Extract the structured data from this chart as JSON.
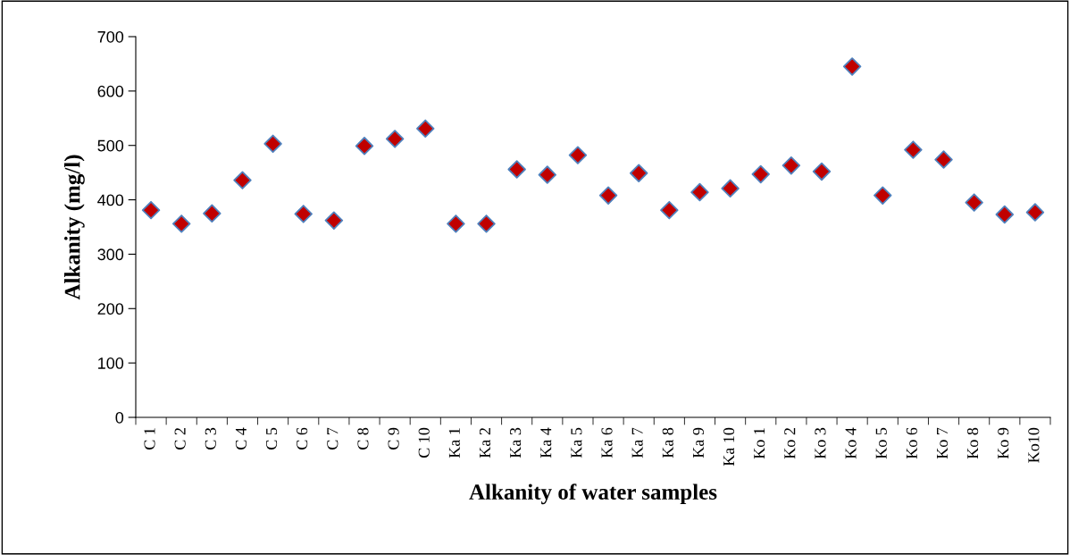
{
  "chart_data": {
    "type": "scatter",
    "xlabel": "Alkanity of water samples",
    "ylabel": "Alkanity (mg/l)",
    "categories": [
      "C 1",
      "C 2",
      "C 3",
      "C 4",
      "C 5",
      "C 6",
      "C 7",
      "C 8",
      "C 9",
      "C 10",
      "Ka 1",
      "Ka 2",
      "Ka 3",
      "Ka 4",
      "Ka 5",
      "Ka 6",
      "Ka 7",
      "Ka 8",
      "Ka 9",
      "Ka 10",
      "Ko 1",
      "Ko 2",
      "Ko 3",
      "Ko 4",
      "Ko 5",
      "Ko 6",
      "Ko 7",
      "Ko 8",
      "Ko 9",
      "Ko10"
    ],
    "series": [
      {
        "color": "#c00000",
        "values": [
          381,
          356,
          375,
          436,
          503,
          374,
          362,
          499,
          512,
          531,
          356,
          356,
          456,
          446,
          482,
          408,
          449,
          381,
          414,
          421,
          447,
          463,
          452,
          645,
          408,
          492,
          474,
          395,
          373,
          377
        ]
      }
    ],
    "ylim": [
      0,
      700
    ],
    "yticks": [
      0,
      100,
      200,
      300,
      400,
      500,
      600,
      700
    ],
    "marker": "diamond",
    "grid": false,
    "legend": false
  }
}
